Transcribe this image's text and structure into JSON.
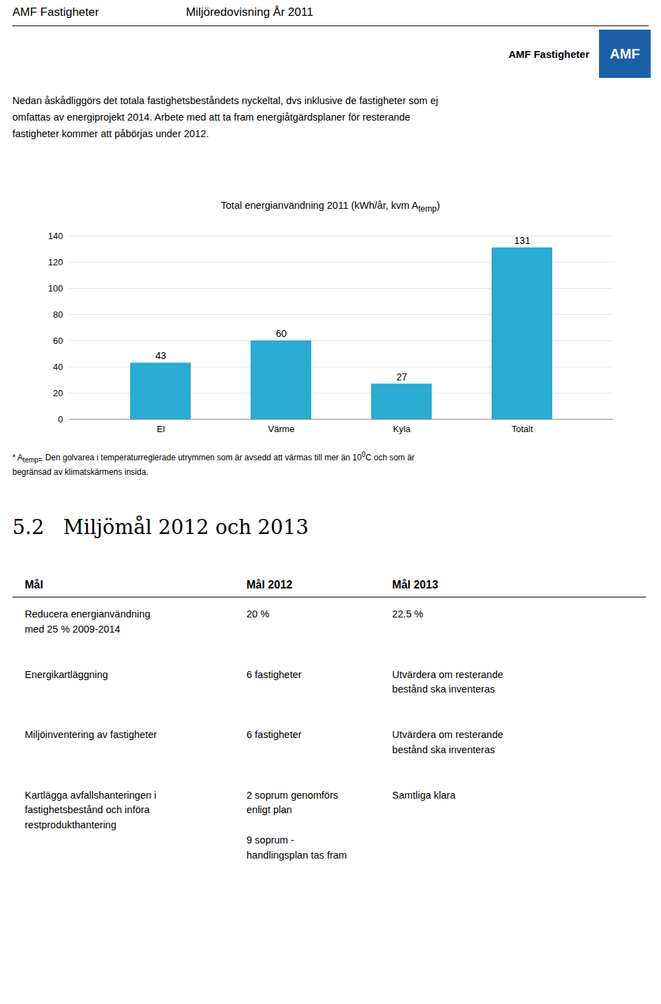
{
  "header": [
    "AMF Fastigheter",
    "Miljöredovisning År 2011"
  ],
  "logo": {
    "label": "AMF Fastigheter",
    "text": "AMF",
    "color": "#1a5fa8"
  },
  "intro": "Nedan åskådliggörs det totala fastighetsbeståndets nyckeltal, dvs inklusive de fastigheter som ej\nomfattas av energiprojekt 2014. Arbete med att ta fram energiåtgärdsplaner för resterande\nfastigheter kommer att påbörjas under 2012.",
  "chart_data": {
    "type": "bar",
    "title_parts": [
      {
        "text": "Total energianvändning  2011 (kWh/år, kvm A"
      },
      {
        "text": "temp",
        "sub": true
      },
      {
        "text": ")"
      }
    ],
    "categories": [
      "El",
      "Värme",
      "Kyla",
      "Totalt"
    ],
    "values": [
      43,
      60,
      27,
      131
    ],
    "color": "#29ABD4",
    "ylim": [
      0,
      140
    ],
    "yticks": [
      0,
      20,
      40,
      60,
      80,
      100,
      120,
      140
    ],
    "grid": true,
    "data_labels": true
  },
  "footnote": [
    [
      {
        "text": "* A"
      },
      {
        "text": "temp=",
        "sub": true
      },
      {
        "text": "Den golvarea i temperaturreglerade utrymmen som är avsedd att värmas till mer än 10"
      },
      {
        "text": "0",
        "sup": true
      },
      {
        "text": "C och som är"
      }
    ],
    [
      {
        "text": "begränsad av klimatskärmens insida."
      }
    ]
  ],
  "section_title": "5.2   Miljömål 2012 och 2013",
  "table": {
    "headers": [
      "Mål",
      "Mål 2012",
      "Mål 2013"
    ],
    "rows": [
      [
        "Reducera energianvändning\nmed 25 % 2009-2014",
        "20 %",
        "22.5 %"
      ],
      [
        "Energikartläggning",
        "6 fastigheter",
        "Utvärdera om resterande\nbestånd ska inventeras"
      ],
      [
        "Miljöinventering av fastigheter",
        "6 fastigheter",
        "Utvärdera om resterande\nbestånd ska inventeras"
      ],
      [
        "Kartlägga avfallshanteringen i\nfastighetsbestånd och införa\nrestprodukthantering",
        "2 soprum genomförs\nenligt plan\n\n9 soprum -\nhandlingsplan tas fram",
        "Samtliga klara"
      ]
    ]
  }
}
